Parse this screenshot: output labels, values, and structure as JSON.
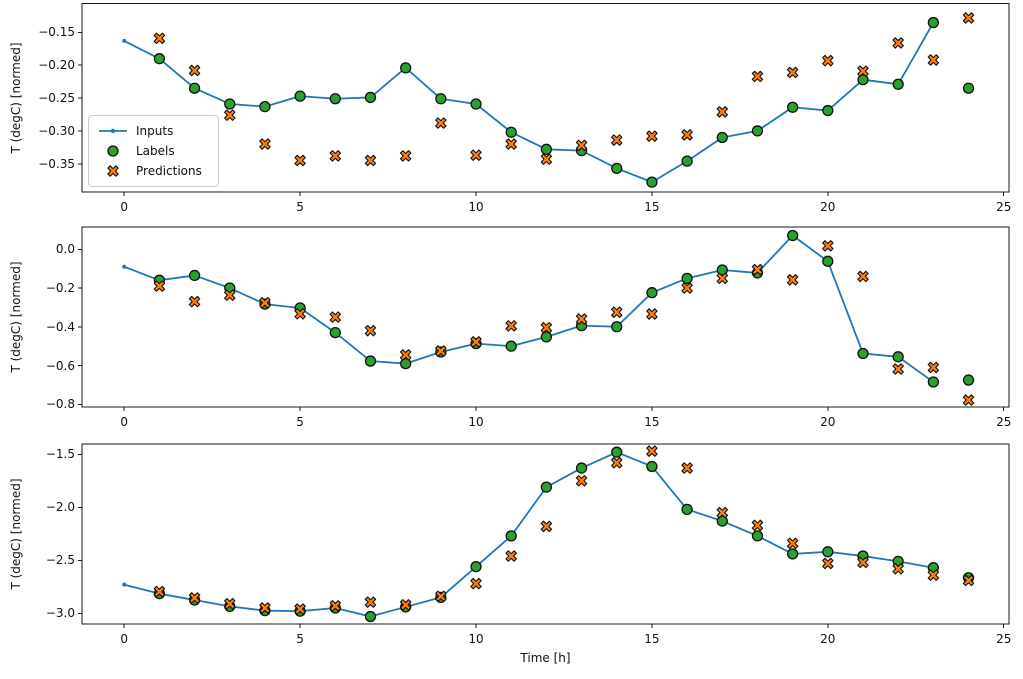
{
  "figure": {
    "background": "#ffffff"
  },
  "colors": {
    "inputs": "#1f77b4",
    "labels": "#2ca02c",
    "predictions": "#ff7f0e",
    "marker_edge": "#111111",
    "spine": "#1a1a1a"
  },
  "legend": {
    "location": "center left of top subplot",
    "items": [
      {
        "label": "Inputs",
        "marker": "line-dot",
        "color": "#1f77b4"
      },
      {
        "label": "Labels",
        "marker": "circle",
        "color": "#2ca02c"
      },
      {
        "label": "Predictions",
        "marker": "X",
        "color": "#ff7f0e"
      }
    ]
  },
  "chart_data": [
    {
      "type": "line",
      "subplot": "top",
      "title": "",
      "xlabel": "",
      "ylabel": "T (degC) [normed]",
      "xlim": [
        -1.2,
        25.15
      ],
      "ylim": [
        -0.393,
        -0.106
      ],
      "grid": false,
      "xticks": {
        "values": [
          0,
          5,
          10,
          15,
          20,
          25
        ],
        "labels": [
          "0",
          "5",
          "10",
          "15",
          "20",
          "25"
        ]
      },
      "yticks": {
        "values": [
          -0.15,
          -0.2,
          -0.25,
          -0.3,
          -0.35
        ],
        "labels": [
          "−0.15",
          "−0.20",
          "−0.25",
          "−0.30",
          "−0.35"
        ]
      },
      "series": [
        {
          "name": "Inputs",
          "style": "line+dot",
          "x": [
            0,
            1,
            2,
            3,
            4,
            5,
            6,
            7,
            8,
            9,
            10,
            11,
            12,
            13,
            14,
            15,
            16,
            17,
            18,
            19,
            20,
            21,
            22,
            23
          ],
          "y": [
            -0.163,
            -0.19,
            -0.235,
            -0.259,
            -0.263,
            -0.247,
            -0.251,
            -0.249,
            -0.204,
            -0.251,
            -0.259,
            -0.302,
            -0.328,
            -0.33,
            -0.357,
            -0.378,
            -0.346,
            -0.31,
            -0.3,
            -0.264,
            -0.269,
            -0.222,
            -0.229,
            -0.135
          ]
        },
        {
          "name": "Labels",
          "style": "scatter-circle",
          "x": [
            1,
            2,
            3,
            4,
            5,
            6,
            7,
            8,
            9,
            10,
            11,
            12,
            13,
            14,
            15,
            16,
            17,
            18,
            19,
            20,
            21,
            22,
            23,
            24
          ],
          "y": [
            -0.19,
            -0.235,
            -0.259,
            -0.263,
            -0.247,
            -0.251,
            -0.249,
            -0.204,
            -0.251,
            -0.259,
            -0.302,
            -0.328,
            -0.33,
            -0.357,
            -0.378,
            -0.346,
            -0.31,
            -0.3,
            -0.264,
            -0.269,
            -0.222,
            -0.229,
            -0.135,
            -0.235
          ]
        },
        {
          "name": "Predictions",
          "style": "scatter-X",
          "x": [
            1,
            2,
            3,
            4,
            5,
            6,
            7,
            8,
            9,
            10,
            11,
            12,
            13,
            14,
            15,
            16,
            17,
            18,
            19,
            20,
            21,
            22,
            23,
            24
          ],
          "y": [
            -0.159,
            -0.208,
            -0.276,
            -0.32,
            -0.345,
            -0.338,
            -0.345,
            -0.338,
            -0.288,
            -0.337,
            -0.32,
            -0.343,
            -0.322,
            -0.314,
            -0.308,
            -0.306,
            -0.271,
            -0.217,
            -0.211,
            -0.193,
            -0.209,
            -0.166,
            -0.192,
            -0.128
          ]
        }
      ]
    },
    {
      "type": "line",
      "subplot": "middle",
      "title": "",
      "xlabel": "",
      "ylabel": "T (degC) [normed]",
      "xlim": [
        -1.2,
        25.15
      ],
      "ylim": [
        -0.814,
        0.115
      ],
      "grid": false,
      "xticks": {
        "values": [
          0,
          5,
          10,
          15,
          20,
          25
        ],
        "labels": [
          "0",
          "5",
          "10",
          "15",
          "20",
          "25"
        ]
      },
      "yticks": {
        "values": [
          0.0,
          -0.2,
          -0.4,
          -0.6,
          -0.8
        ],
        "labels": [
          "0.0",
          "−0.2",
          "−0.4",
          "−0.6",
          "−0.8"
        ]
      },
      "series": [
        {
          "name": "Inputs",
          "style": "line+dot",
          "x": [
            0,
            1,
            2,
            3,
            4,
            5,
            6,
            7,
            8,
            9,
            10,
            11,
            12,
            13,
            14,
            15,
            16,
            17,
            18,
            19,
            20,
            21,
            22,
            23
          ],
          "y": [
            -0.09,
            -0.16,
            -0.135,
            -0.2,
            -0.283,
            -0.303,
            -0.43,
            -0.577,
            -0.59,
            -0.53,
            -0.487,
            -0.5,
            -0.452,
            -0.394,
            -0.4,
            -0.224,
            -0.15,
            -0.107,
            -0.122,
            0.071,
            -0.062,
            -0.538,
            -0.555,
            -0.685
          ]
        },
        {
          "name": "Labels",
          "style": "scatter-circle",
          "x": [
            1,
            2,
            3,
            4,
            5,
            6,
            7,
            8,
            9,
            10,
            11,
            12,
            13,
            14,
            15,
            16,
            17,
            18,
            19,
            20,
            21,
            22,
            23,
            24
          ],
          "y": [
            -0.16,
            -0.135,
            -0.2,
            -0.283,
            -0.303,
            -0.43,
            -0.577,
            -0.59,
            -0.53,
            -0.487,
            -0.5,
            -0.452,
            -0.394,
            -0.4,
            -0.224,
            -0.15,
            -0.107,
            -0.122,
            0.071,
            -0.062,
            -0.538,
            -0.555,
            -0.685,
            -0.675
          ]
        },
        {
          "name": "Predictions",
          "style": "scatter-X",
          "x": [
            1,
            2,
            3,
            4,
            5,
            6,
            7,
            8,
            9,
            10,
            11,
            12,
            13,
            14,
            15,
            16,
            17,
            18,
            19,
            20,
            21,
            22,
            23,
            24
          ],
          "y": [
            -0.19,
            -0.27,
            -0.237,
            -0.276,
            -0.333,
            -0.35,
            -0.42,
            -0.545,
            -0.525,
            -0.478,
            -0.395,
            -0.405,
            -0.36,
            -0.325,
            -0.334,
            -0.2,
            -0.15,
            -0.105,
            -0.158,
            0.018,
            -0.14,
            -0.618,
            -0.61,
            -0.778
          ]
        }
      ]
    },
    {
      "type": "line",
      "subplot": "bottom",
      "title": "",
      "xlabel": "Time [h]",
      "ylabel": "T (degC) [normed]",
      "xlim": [
        -1.2,
        25.15
      ],
      "ylim": [
        -3.101,
        -1.403
      ],
      "grid": false,
      "xticks": {
        "values": [
          0,
          5,
          10,
          15,
          20,
          25
        ],
        "labels": [
          "0",
          "5",
          "10",
          "15",
          "20",
          "25"
        ]
      },
      "yticks": {
        "values": [
          -1.5,
          -2.0,
          -2.5,
          -3.0
        ],
        "labels": [
          "−1.5",
          "−2.0",
          "−2.5",
          "−3.0"
        ]
      },
      "series": [
        {
          "name": "Inputs",
          "style": "line+dot",
          "x": [
            0,
            1,
            2,
            3,
            4,
            5,
            6,
            7,
            8,
            9,
            10,
            11,
            12,
            13,
            14,
            15,
            16,
            17,
            18,
            19,
            20,
            21,
            22,
            23
          ],
          "y": [
            -2.73,
            -2.815,
            -2.875,
            -2.935,
            -2.975,
            -2.98,
            -2.95,
            -3.03,
            -2.94,
            -2.85,
            -2.56,
            -2.27,
            -1.81,
            -1.63,
            -1.48,
            -1.615,
            -2.02,
            -2.13,
            -2.27,
            -2.44,
            -2.42,
            -2.46,
            -2.51,
            -2.57
          ]
        },
        {
          "name": "Labels",
          "style": "scatter-circle",
          "x": [
            1,
            2,
            3,
            4,
            5,
            6,
            7,
            8,
            9,
            10,
            11,
            12,
            13,
            14,
            15,
            16,
            17,
            18,
            19,
            20,
            21,
            22,
            23,
            24
          ],
          "y": [
            -2.815,
            -2.875,
            -2.935,
            -2.975,
            -2.98,
            -2.95,
            -3.03,
            -2.94,
            -2.85,
            -2.56,
            -2.27,
            -1.81,
            -1.63,
            -1.48,
            -1.615,
            -2.02,
            -2.13,
            -2.27,
            -2.44,
            -2.42,
            -2.46,
            -2.51,
            -2.57,
            -2.665
          ]
        },
        {
          "name": "Predictions",
          "style": "scatter-X",
          "x": [
            1,
            2,
            3,
            4,
            5,
            6,
            7,
            8,
            9,
            10,
            11,
            12,
            13,
            14,
            15,
            16,
            17,
            18,
            19,
            20,
            21,
            22,
            23,
            24
          ],
          "y": [
            -2.795,
            -2.855,
            -2.91,
            -2.95,
            -2.96,
            -2.93,
            -2.895,
            -2.92,
            -2.84,
            -2.72,
            -2.46,
            -2.18,
            -1.75,
            -1.58,
            -1.47,
            -1.63,
            -2.05,
            -2.17,
            -2.34,
            -2.53,
            -2.52,
            -2.58,
            -2.64,
            -2.69
          ]
        }
      ]
    }
  ]
}
